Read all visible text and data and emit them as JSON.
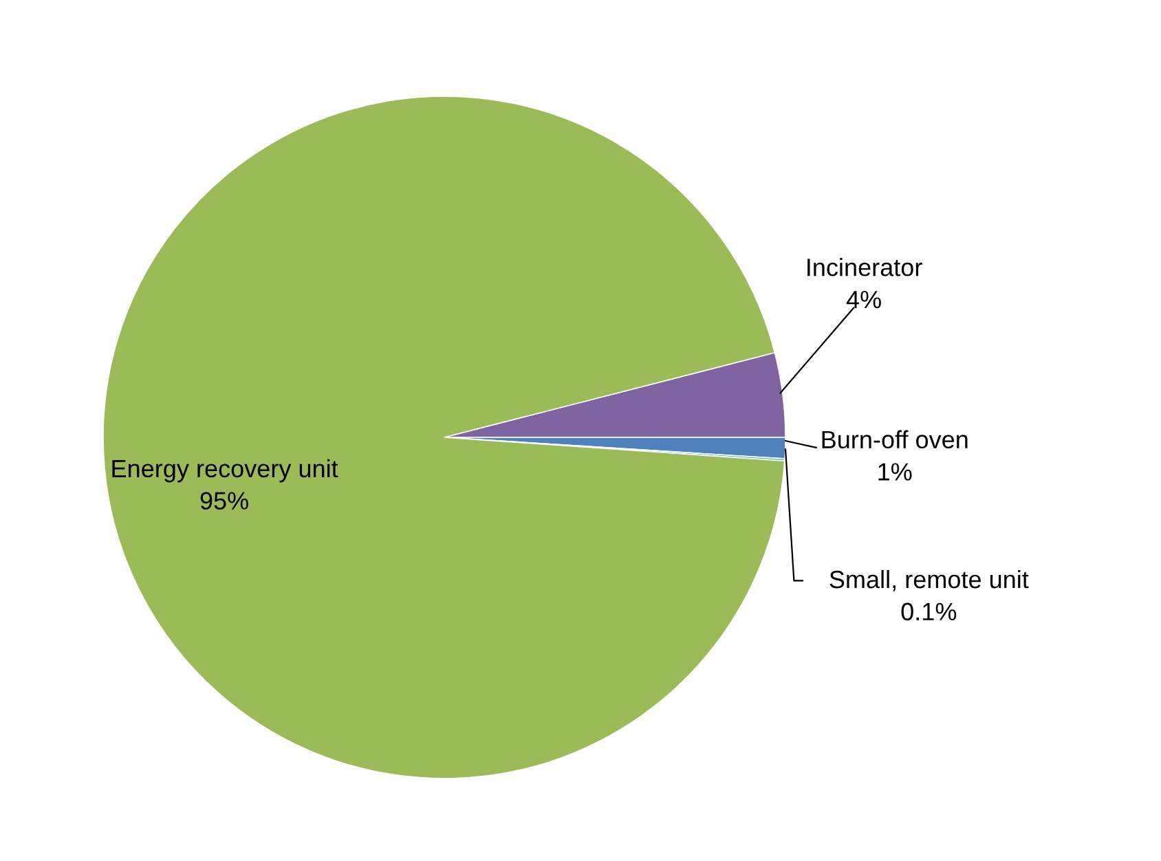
{
  "chart_data": {
    "type": "pie",
    "categories": [
      "Incinerator",
      "Burn-off oven",
      "Small, remote unit",
      "Energy recovery unit"
    ],
    "values": [
      4,
      1,
      0.1,
      95
    ],
    "value_labels": [
      "4%",
      "1%",
      "0.1%",
      "95%"
    ],
    "colors": [
      "#8064a2",
      "#4f81bd",
      "#4bacc6",
      "#9bbb59"
    ],
    "legend": false
  }
}
